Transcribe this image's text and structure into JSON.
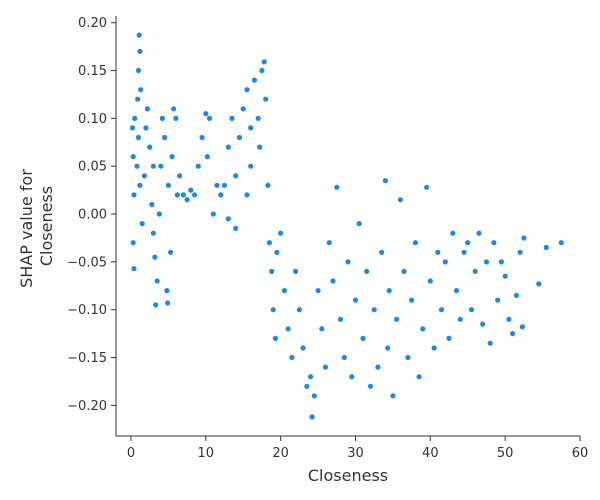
{
  "chart_data": {
    "type": "scatter",
    "title": "",
    "xlabel": "Closeness",
    "ylabel_lines": [
      "SHAP value for",
      "Closeness"
    ],
    "xlim": [
      -2,
      60
    ],
    "ylim": [
      -0.232,
      0.207
    ],
    "xticks": [
      0,
      10,
      20,
      30,
      40,
      50,
      60
    ],
    "xtick_labels": [
      "0",
      "10",
      "20",
      "30",
      "40",
      "50",
      "60"
    ],
    "yticks": [
      -0.2,
      -0.15,
      -0.1,
      -0.05,
      0.0,
      0.05,
      0.1,
      0.15,
      0.2
    ],
    "ytick_labels": [
      "−0.20",
      "−0.15",
      "−0.10",
      "−0.05",
      "0.00",
      "0.05",
      "0.10",
      "0.15",
      "0.20"
    ],
    "grid": false,
    "legend": "none",
    "color": "#1e88e5",
    "series": [
      {
        "points": [
          [
            0.2,
            0.09
          ],
          [
            0.3,
            0.06
          ],
          [
            0.4,
            0.02
          ],
          [
            0.3,
            -0.03
          ],
          [
            0.4,
            -0.057
          ],
          [
            0.5,
            0.1
          ],
          [
            0.8,
            0.05
          ],
          [
            0.9,
            0.12
          ],
          [
            1.0,
            0.15
          ],
          [
            1.1,
            0.187
          ],
          [
            1.2,
            0.17
          ],
          [
            1.3,
            0.13
          ],
          [
            1.0,
            0.08
          ],
          [
            1.2,
            0.03
          ],
          [
            1.5,
            -0.01
          ],
          [
            1.8,
            0.04
          ],
          [
            2.0,
            0.09
          ],
          [
            2.2,
            0.11
          ],
          [
            2.5,
            0.07
          ],
          [
            2.8,
            0.01
          ],
          [
            3.0,
            -0.02
          ],
          [
            3.2,
            -0.045
          ],
          [
            3.0,
            0.05
          ],
          [
            3.5,
            -0.07
          ],
          [
            3.3,
            -0.095
          ],
          [
            3.8,
            0.0
          ],
          [
            4.0,
            0.05
          ],
          [
            4.2,
            0.1
          ],
          [
            4.5,
            0.08
          ],
          [
            4.8,
            -0.08
          ],
          [
            4.9,
            -0.093
          ],
          [
            5.0,
            0.03
          ],
          [
            5.3,
            -0.04
          ],
          [
            5.5,
            0.06
          ],
          [
            5.7,
            0.11
          ],
          [
            6.0,
            0.1
          ],
          [
            6.2,
            0.02
          ],
          [
            6.5,
            0.04
          ],
          [
            7.0,
            0.02
          ],
          [
            7.5,
            0.015
          ],
          [
            8.0,
            0.025
          ],
          [
            8.5,
            0.02
          ],
          [
            9.0,
            0.05
          ],
          [
            9.5,
            0.08
          ],
          [
            10.0,
            0.105
          ],
          [
            10.2,
            0.06
          ],
          [
            10.5,
            0.1
          ],
          [
            11.0,
            0.0
          ],
          [
            11.5,
            0.03
          ],
          [
            12.0,
            0.02
          ],
          [
            12.5,
            0.03
          ],
          [
            13.0,
            0.07
          ],
          [
            13.5,
            0.1
          ],
          [
            13.0,
            -0.005
          ],
          [
            14.0,
            -0.015
          ],
          [
            14.0,
            0.04
          ],
          [
            14.5,
            0.08
          ],
          [
            15.0,
            0.11
          ],
          [
            15.5,
            0.13
          ],
          [
            15.5,
            0.02
          ],
          [
            16.0,
            0.09
          ],
          [
            16.0,
            0.05
          ],
          [
            16.5,
            0.14
          ],
          [
            17.0,
            0.1
          ],
          [
            17.2,
            0.07
          ],
          [
            17.5,
            0.15
          ],
          [
            17.8,
            0.159
          ],
          [
            18.0,
            0.12
          ],
          [
            18.3,
            0.03
          ],
          [
            18.5,
            -0.03
          ],
          [
            18.8,
            -0.06
          ],
          [
            19.0,
            -0.1
          ],
          [
            19.3,
            -0.13
          ],
          [
            19.5,
            -0.04
          ],
          [
            20.0,
            -0.02
          ],
          [
            20.5,
            -0.08
          ],
          [
            21.0,
            -0.12
          ],
          [
            21.5,
            -0.15
          ],
          [
            22.0,
            -0.06
          ],
          [
            22.5,
            -0.1
          ],
          [
            23.0,
            -0.14
          ],
          [
            23.5,
            -0.18
          ],
          [
            24.0,
            -0.17
          ],
          [
            24.2,
            -0.212
          ],
          [
            24.5,
            -0.19
          ],
          [
            25.0,
            -0.08
          ],
          [
            25.5,
            -0.12
          ],
          [
            26.0,
            -0.16
          ],
          [
            26.5,
            -0.03
          ],
          [
            27.0,
            -0.07
          ],
          [
            27.5,
            0.028
          ],
          [
            28.0,
            -0.11
          ],
          [
            28.5,
            -0.15
          ],
          [
            29.0,
            -0.05
          ],
          [
            29.5,
            -0.17
          ],
          [
            30.0,
            -0.09
          ],
          [
            30.5,
            -0.01
          ],
          [
            31.0,
            -0.13
          ],
          [
            31.5,
            -0.06
          ],
          [
            32.0,
            -0.18
          ],
          [
            32.5,
            -0.1
          ],
          [
            33.0,
            -0.16
          ],
          [
            33.5,
            -0.04
          ],
          [
            34.0,
            0.035
          ],
          [
            34.3,
            -0.14
          ],
          [
            34.5,
            -0.08
          ],
          [
            35.0,
            -0.19
          ],
          [
            35.5,
            -0.11
          ],
          [
            36.0,
            0.015
          ],
          [
            36.5,
            -0.06
          ],
          [
            37.0,
            -0.15
          ],
          [
            37.5,
            -0.09
          ],
          [
            38.0,
            -0.03
          ],
          [
            38.5,
            -0.17
          ],
          [
            39.0,
            -0.12
          ],
          [
            39.5,
            0.028
          ],
          [
            40.0,
            -0.07
          ],
          [
            40.5,
            -0.14
          ],
          [
            41.0,
            -0.04
          ],
          [
            41.5,
            -0.1
          ],
          [
            42.0,
            -0.05
          ],
          [
            42.5,
            -0.13
          ],
          [
            43.0,
            -0.02
          ],
          [
            43.5,
            -0.08
          ],
          [
            44.0,
            -0.11
          ],
          [
            44.5,
            -0.04
          ],
          [
            45.0,
            -0.03
          ],
          [
            45.5,
            -0.1
          ],
          [
            46.0,
            -0.06
          ],
          [
            46.5,
            -0.02
          ],
          [
            47.0,
            -0.115
          ],
          [
            47.5,
            -0.05
          ],
          [
            48.0,
            -0.135
          ],
          [
            48.5,
            -0.03
          ],
          [
            49.0,
            -0.09
          ],
          [
            49.5,
            -0.05
          ],
          [
            50.0,
            -0.065
          ],
          [
            50.5,
            -0.11
          ],
          [
            51.0,
            -0.125
          ],
          [
            51.5,
            -0.085
          ],
          [
            52.0,
            -0.04
          ],
          [
            52.3,
            -0.118
          ],
          [
            52.5,
            -0.025
          ],
          [
            54.5,
            -0.073
          ],
          [
            55.5,
            -0.035
          ],
          [
            57.5,
            -0.03
          ]
        ]
      }
    ]
  }
}
